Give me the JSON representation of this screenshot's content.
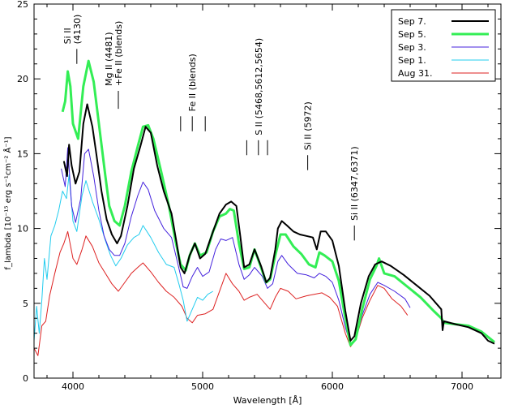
{
  "chart_data": {
    "type": "line",
    "xlabel": "Wavelength [Å]",
    "ylabel": "f_lambda [10⁻¹⁵ erg s⁻¹cm⁻² Å⁻¹]",
    "xlim": [
      3700,
      7300
    ],
    "ylim": [
      0,
      25
    ],
    "x_ticks": [
      4000,
      5000,
      6000,
      7000
    ],
    "y_ticks": [
      0,
      5,
      10,
      15,
      20,
      25
    ],
    "legend_position": "top-right",
    "series": [
      {
        "name": "Sep 7.",
        "color": "#000000",
        "width": 2,
        "points": [
          [
            3930,
            14.5
          ],
          [
            3955,
            13.5
          ],
          [
            3970,
            15.6
          ],
          [
            3990,
            14.2
          ],
          [
            4020,
            13.0
          ],
          [
            4050,
            13.8
          ],
          [
            4080,
            17.0
          ],
          [
            4110,
            18.3
          ],
          [
            4150,
            16.8
          ],
          [
            4180,
            15.0
          ],
          [
            4220,
            12.5
          ],
          [
            4260,
            10.6
          ],
          [
            4300,
            9.6
          ],
          [
            4340,
            9.0
          ],
          [
            4370,
            9.5
          ],
          [
            4420,
            11.5
          ],
          [
            4470,
            14.0
          ],
          [
            4520,
            15.5
          ],
          [
            4560,
            16.8
          ],
          [
            4600,
            16.4
          ],
          [
            4650,
            14.2
          ],
          [
            4700,
            12.5
          ],
          [
            4760,
            11.0
          ],
          [
            4800,
            9.0
          ],
          [
            4830,
            7.4
          ],
          [
            4860,
            7.0
          ],
          [
            4900,
            8.2
          ],
          [
            4940,
            9.0
          ],
          [
            4980,
            8.0
          ],
          [
            5020,
            8.3
          ],
          [
            5080,
            9.8
          ],
          [
            5130,
            11.0
          ],
          [
            5180,
            11.6
          ],
          [
            5220,
            11.8
          ],
          [
            5260,
            11.5
          ],
          [
            5290,
            9.5
          ],
          [
            5320,
            7.4
          ],
          [
            5360,
            7.6
          ],
          [
            5400,
            8.6
          ],
          [
            5450,
            7.5
          ],
          [
            5490,
            6.4
          ],
          [
            5520,
            6.7
          ],
          [
            5560,
            8.6
          ],
          [
            5580,
            10.0
          ],
          [
            5610,
            10.5
          ],
          [
            5650,
            10.2
          ],
          [
            5700,
            9.8
          ],
          [
            5750,
            9.6
          ],
          [
            5800,
            9.5
          ],
          [
            5850,
            9.4
          ],
          [
            5880,
            8.6
          ],
          [
            5910,
            9.8
          ],
          [
            5950,
            9.8
          ],
          [
            6000,
            9.2
          ],
          [
            6050,
            7.5
          ],
          [
            6100,
            4.5
          ],
          [
            6140,
            2.5
          ],
          [
            6170,
            2.8
          ],
          [
            6220,
            5.0
          ],
          [
            6280,
            6.8
          ],
          [
            6330,
            7.6
          ],
          [
            6380,
            7.8
          ],
          [
            6450,
            7.5
          ],
          [
            6550,
            6.9
          ],
          [
            6650,
            6.2
          ],
          [
            6750,
            5.5
          ],
          [
            6840,
            4.6
          ],
          [
            6850,
            3.2
          ],
          [
            6860,
            3.8
          ],
          [
            6950,
            3.6
          ],
          [
            7050,
            3.4
          ],
          [
            7150,
            3.0
          ],
          [
            7200,
            2.5
          ],
          [
            7250,
            2.3
          ]
        ]
      },
      {
        "name": "Sep 5.",
        "color": "#33ee55",
        "width": 3,
        "points": [
          [
            3920,
            17.8
          ],
          [
            3940,
            18.5
          ],
          [
            3960,
            20.5
          ],
          [
            3980,
            19.5
          ],
          [
            4000,
            17.0
          ],
          [
            4040,
            16.0
          ],
          [
            4080,
            19.5
          ],
          [
            4120,
            21.2
          ],
          [
            4160,
            19.8
          ],
          [
            4200,
            17.0
          ],
          [
            4250,
            13.5
          ],
          [
            4280,
            11.5
          ],
          [
            4320,
            10.5
          ],
          [
            4360,
            10.2
          ],
          [
            4400,
            11.5
          ],
          [
            4450,
            13.8
          ],
          [
            4500,
            15.5
          ],
          [
            4540,
            16.8
          ],
          [
            4580,
            16.9
          ],
          [
            4620,
            16.0
          ],
          [
            4680,
            13.8
          ],
          [
            4740,
            11.5
          ],
          [
            4790,
            9.2
          ],
          [
            4830,
            7.6
          ],
          [
            4870,
            7.2
          ],
          [
            4900,
            8.2
          ],
          [
            4940,
            9.0
          ],
          [
            4980,
            8.2
          ],
          [
            5030,
            8.4
          ],
          [
            5080,
            9.8
          ],
          [
            5130,
            10.8
          ],
          [
            5180,
            11.0
          ],
          [
            5210,
            11.3
          ],
          [
            5240,
            11.2
          ],
          [
            5280,
            9.0
          ],
          [
            5320,
            7.3
          ],
          [
            5360,
            7.4
          ],
          [
            5400,
            8.6
          ],
          [
            5450,
            7.4
          ],
          [
            5490,
            6.4
          ],
          [
            5520,
            6.6
          ],
          [
            5560,
            8.2
          ],
          [
            5600,
            9.6
          ],
          [
            5640,
            9.6
          ],
          [
            5700,
            8.8
          ],
          [
            5760,
            8.3
          ],
          [
            5820,
            7.6
          ],
          [
            5870,
            7.4
          ],
          [
            5900,
            8.4
          ],
          [
            5940,
            8.2
          ],
          [
            6000,
            7.8
          ],
          [
            6050,
            6.5
          ],
          [
            6100,
            4.0
          ],
          [
            6140,
            2.2
          ],
          [
            6180,
            2.6
          ],
          [
            6230,
            4.6
          ],
          [
            6290,
            6.6
          ],
          [
            6340,
            7.5
          ],
          [
            6360,
            8.0
          ],
          [
            6400,
            7.0
          ],
          [
            6480,
            6.8
          ],
          [
            6580,
            6.1
          ],
          [
            6680,
            5.4
          ],
          [
            6780,
            4.5
          ],
          [
            6840,
            4.0
          ],
          [
            6860,
            3.7
          ],
          [
            6950,
            3.6
          ],
          [
            7050,
            3.5
          ],
          [
            7150,
            3.1
          ],
          [
            7250,
            2.4
          ]
        ]
      },
      {
        "name": "Sep 3.",
        "color": "#4422dd",
        "width": 1,
        "points": [
          [
            3910,
            14.0
          ],
          [
            3940,
            12.8
          ],
          [
            3960,
            15.4
          ],
          [
            3990,
            11.5
          ],
          [
            4020,
            10.4
          ],
          [
            4060,
            12.0
          ],
          [
            4090,
            15.0
          ],
          [
            4120,
            15.3
          ],
          [
            4160,
            13.5
          ],
          [
            4200,
            11.2
          ],
          [
            4240,
            9.5
          ],
          [
            4280,
            8.6
          ],
          [
            4320,
            8.2
          ],
          [
            4360,
            8.2
          ],
          [
            4400,
            9.0
          ],
          [
            4450,
            10.8
          ],
          [
            4500,
            12.2
          ],
          [
            4540,
            13.1
          ],
          [
            4580,
            12.6
          ],
          [
            4630,
            11.2
          ],
          [
            4700,
            10.0
          ],
          [
            4760,
            9.4
          ],
          [
            4810,
            7.6
          ],
          [
            4850,
            6.1
          ],
          [
            4880,
            6.0
          ],
          [
            4920,
            6.8
          ],
          [
            4960,
            7.4
          ],
          [
            5000,
            6.8
          ],
          [
            5050,
            7.1
          ],
          [
            5100,
            8.6
          ],
          [
            5140,
            9.3
          ],
          [
            5180,
            9.2
          ],
          [
            5230,
            9.4
          ],
          [
            5280,
            7.6
          ],
          [
            5320,
            6.6
          ],
          [
            5360,
            6.9
          ],
          [
            5400,
            7.4
          ],
          [
            5460,
            6.8
          ],
          [
            5500,
            6.0
          ],
          [
            5540,
            6.3
          ],
          [
            5580,
            7.8
          ],
          [
            5610,
            8.2
          ],
          [
            5660,
            7.6
          ],
          [
            5730,
            7.0
          ],
          [
            5800,
            6.9
          ],
          [
            5860,
            6.7
          ],
          [
            5900,
            7.0
          ],
          [
            5950,
            6.8
          ],
          [
            6000,
            6.4
          ],
          [
            6050,
            5.2
          ],
          [
            6100,
            3.4
          ],
          [
            6140,
            2.3
          ],
          [
            6180,
            2.6
          ],
          [
            6230,
            4.2
          ],
          [
            6290,
            5.6
          ],
          [
            6350,
            6.4
          ],
          [
            6400,
            6.2
          ],
          [
            6480,
            5.8
          ],
          [
            6560,
            5.3
          ],
          [
            6600,
            4.7
          ]
        ]
      },
      {
        "name": "Sep 1.",
        "color": "#22ccee",
        "width": 1,
        "points": [
          [
            3700,
            2.5
          ],
          [
            3720,
            4.8
          ],
          [
            3740,
            3.0
          ],
          [
            3760,
            5.2
          ],
          [
            3780,
            8.0
          ],
          [
            3800,
            6.6
          ],
          [
            3830,
            9.5
          ],
          [
            3860,
            10.2
          ],
          [
            3890,
            11.2
          ],
          [
            3920,
            12.5
          ],
          [
            3950,
            12.0
          ],
          [
            3970,
            13.6
          ],
          [
            4000,
            10.5
          ],
          [
            4030,
            9.8
          ],
          [
            4070,
            12.2
          ],
          [
            4100,
            13.2
          ],
          [
            4150,
            11.8
          ],
          [
            4200,
            10.6
          ],
          [
            4250,
            9.2
          ],
          [
            4290,
            8.2
          ],
          [
            4330,
            7.5
          ],
          [
            4370,
            8.0
          ],
          [
            4420,
            8.9
          ],
          [
            4470,
            9.4
          ],
          [
            4510,
            9.6
          ],
          [
            4540,
            10.2
          ],
          [
            4600,
            9.4
          ],
          [
            4660,
            8.4
          ],
          [
            4720,
            7.6
          ],
          [
            4780,
            7.4
          ],
          [
            4820,
            6.2
          ],
          [
            4850,
            5.2
          ],
          [
            4880,
            3.8
          ],
          [
            4920,
            4.6
          ],
          [
            4960,
            5.4
          ],
          [
            5000,
            5.2
          ],
          [
            5040,
            5.6
          ],
          [
            5080,
            5.8
          ]
        ]
      },
      {
        "name": "Aug 31.",
        "color": "#dd2222",
        "width": 1,
        "points": [
          [
            3700,
            2.0
          ],
          [
            3730,
            1.5
          ],
          [
            3760,
            3.5
          ],
          [
            3790,
            3.8
          ],
          [
            3820,
            5.5
          ],
          [
            3860,
            7.0
          ],
          [
            3900,
            8.4
          ],
          [
            3930,
            9.0
          ],
          [
            3960,
            9.8
          ],
          [
            4000,
            8.0
          ],
          [
            4030,
            7.6
          ],
          [
            4070,
            8.6
          ],
          [
            4100,
            9.5
          ],
          [
            4150,
            8.8
          ],
          [
            4200,
            7.7
          ],
          [
            4250,
            7.0
          ],
          [
            4300,
            6.3
          ],
          [
            4350,
            5.8
          ],
          [
            4400,
            6.4
          ],
          [
            4450,
            7.0
          ],
          [
            4500,
            7.4
          ],
          [
            4540,
            7.7
          ],
          [
            4600,
            7.1
          ],
          [
            4660,
            6.4
          ],
          [
            4720,
            5.8
          ],
          [
            4780,
            5.4
          ],
          [
            4840,
            4.8
          ],
          [
            4880,
            4.0
          ],
          [
            4920,
            3.7
          ],
          [
            4960,
            4.2
          ],
          [
            5020,
            4.3
          ],
          [
            5080,
            4.6
          ],
          [
            5180,
            7.0
          ],
          [
            5230,
            6.3
          ],
          [
            5280,
            5.8
          ],
          [
            5320,
            5.2
          ],
          [
            5360,
            5.4
          ],
          [
            5420,
            5.6
          ],
          [
            5480,
            5.0
          ],
          [
            5520,
            4.6
          ],
          [
            5560,
            5.4
          ],
          [
            5600,
            6.0
          ],
          [
            5660,
            5.8
          ],
          [
            5720,
            5.3
          ],
          [
            5800,
            5.5
          ],
          [
            5860,
            5.6
          ],
          [
            5920,
            5.7
          ],
          [
            5980,
            5.4
          ],
          [
            6040,
            4.8
          ],
          [
            6100,
            3.0
          ],
          [
            6140,
            2.1
          ],
          [
            6180,
            2.6
          ],
          [
            6230,
            4.0
          ],
          [
            6290,
            5.2
          ],
          [
            6350,
            6.2
          ],
          [
            6400,
            6.0
          ],
          [
            6460,
            5.3
          ],
          [
            6530,
            4.8
          ],
          [
            6580,
            4.2
          ]
        ]
      }
    ],
    "annotations": [
      {
        "text": [
          "Si II",
          "(4130)"
        ],
        "x": 4030,
        "mark_y": [
          22.0,
          21.0
        ]
      },
      {
        "text": [
          "Mg II (4481)",
          "+Fe II (blends)"
        ],
        "x": 4350,
        "mark_y": [
          19.2,
          18.0
        ]
      },
      {
        "text": [
          "Fe II (blends)"
        ],
        "x": 4920,
        "mark_y": [
          17.5,
          16.5
        ],
        "extra_marks": [
          4830,
          5020
        ]
      },
      {
        "text": [
          "S II (5468,5612,5654)"
        ],
        "x": 5430,
        "mark_y": [
          15.9,
          14.9
        ],
        "extra_marks": [
          5340,
          5500
        ]
      },
      {
        "text": [
          "Si II (5972)"
        ],
        "x": 5810,
        "mark_y": [
          14.9,
          13.9
        ]
      },
      {
        "text": [
          "Si II (6347,6371)"
        ],
        "x": 6170,
        "mark_y": [
          10.2,
          9.2
        ]
      }
    ]
  }
}
